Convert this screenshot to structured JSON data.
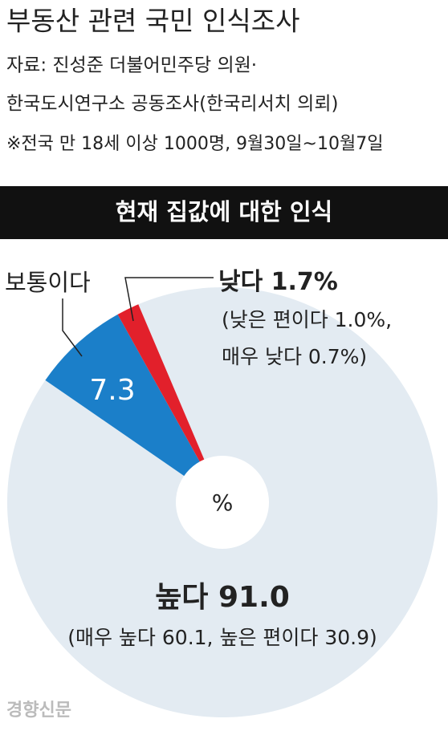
{
  "chart_data": {
    "type": "pie",
    "title": "부동산 관련 국민 인식조사",
    "source": [
      "자료: 진성준 더불어민주당 의원·",
      "한국도시연구소 공동조사(한국리서치 의뢰)",
      "※전국 만 18세 이상 1000명, 9월30일~10월7일"
    ],
    "subtitle": "현재 집값에 대한 인식",
    "unit": "%",
    "categories": [
      "높다",
      "보통이다",
      "낮다"
    ],
    "values": [
      91.0,
      7.3,
      1.7
    ],
    "value_labels": [
      "91.0",
      "7.3",
      "1.7%"
    ],
    "colors": [
      "#e3ebf2",
      "#1b7fc9",
      "#e2202b"
    ],
    "annotations": [
      "(매우 높다 60.1, 높은 편이다 30.9)",
      "(낮은 편이다 1.0%,",
      "매우 낮다 0.7%)"
    ]
  },
  "credit": "경향신문"
}
